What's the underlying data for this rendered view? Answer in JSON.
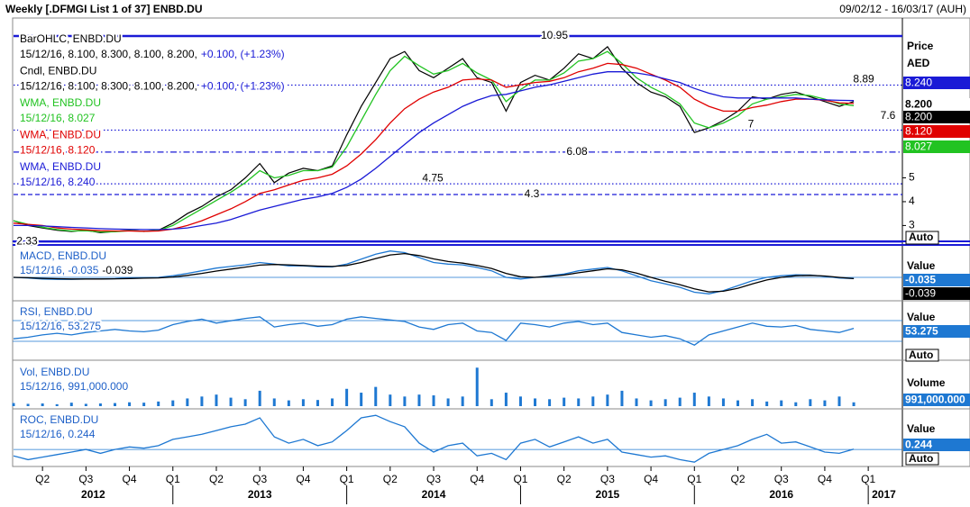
{
  "header": {
    "title": "Weekly [.DFMGI List 1 of 37] ENBD.DU",
    "range": "09/02/12 - 16/03/17 (AUH)"
  },
  "chart_data": [
    {
      "type": "line",
      "axis_title": [
        "Price",
        "AED"
      ],
      "axis_mode": "Auto",
      "ylim": [
        2.26,
        11.1
      ],
      "yticks": [
        3,
        4,
        5
      ],
      "bar_legend": {
        "name": "BarOHLC, ENBD.DU",
        "legend_detail": "15/12/16, 8.100, 8.300, 8.100, 8.200,",
        "legend_change": "+0.100, (+1.23%)",
        "last_label": "8.200"
      },
      "series": [
        {
          "name": "Cndl, ENBD.DU",
          "color": "#000000",
          "legend_detail": "15/12/16, 8.100, 8.300, 8.100, 8.200,",
          "legend_change": "+0.100, (+1.23%)",
          "last_label": "8.200",
          "values": [
            3.2,
            3.0,
            2.9,
            2.8,
            2.75,
            2.8,
            2.7,
            2.75,
            2.8,
            2.75,
            2.8,
            3.1,
            3.5,
            3.8,
            4.2,
            4.5,
            5.0,
            5.6,
            4.8,
            5.2,
            5.4,
            5.3,
            5.5,
            6.8,
            8.0,
            9.0,
            10.0,
            10.3,
            9.5,
            9.2,
            9.6,
            10.0,
            9.2,
            9.0,
            7.8,
            9.0,
            9.3,
            9.1,
            9.6,
            10.2,
            10.0,
            10.5,
            9.6,
            9.0,
            8.6,
            8.4,
            8.0,
            6.9,
            7.1,
            7.4,
            7.8,
            8.4,
            8.3,
            8.5,
            8.6,
            8.4,
            8.2,
            8.0,
            8.2
          ]
        },
        {
          "name": "WMA, ENBD.DU",
          "color": "#22c322",
          "legend_detail": "15/12/16, 8.027",
          "last_label": "8.027",
          "values": [
            3.2,
            3.05,
            2.93,
            2.83,
            2.77,
            2.78,
            2.73,
            2.74,
            2.78,
            2.76,
            2.79,
            3.0,
            3.35,
            3.7,
            4.05,
            4.4,
            4.8,
            5.3,
            5.0,
            5.1,
            5.3,
            5.3,
            5.45,
            6.3,
            7.4,
            8.5,
            9.5,
            10.1,
            9.7,
            9.35,
            9.5,
            9.8,
            9.4,
            9.1,
            8.2,
            8.7,
            9.1,
            9.1,
            9.4,
            9.9,
            10.0,
            10.3,
            9.8,
            9.2,
            8.8,
            8.5,
            8.1,
            7.3,
            7.1,
            7.3,
            7.6,
            8.1,
            8.3,
            8.4,
            8.5,
            8.45,
            8.3,
            8.1,
            8.03
          ]
        },
        {
          "name": "WMA, ENBD.DU",
          "color": "#e00000",
          "legend_detail": "15/12/16, 8.120",
          "last_label": "8.120",
          "values": [
            3.1,
            3.05,
            3.0,
            2.9,
            2.85,
            2.82,
            2.78,
            2.77,
            2.77,
            2.76,
            2.77,
            2.85,
            3.0,
            3.2,
            3.45,
            3.7,
            4.0,
            4.35,
            4.5,
            4.7,
            4.9,
            5.0,
            5.15,
            5.5,
            6.0,
            6.6,
            7.3,
            7.9,
            8.3,
            8.6,
            8.8,
            9.1,
            9.15,
            9.1,
            8.8,
            8.9,
            9.0,
            9.05,
            9.2,
            9.45,
            9.6,
            9.8,
            9.75,
            9.6,
            9.35,
            9.1,
            8.8,
            8.3,
            8.0,
            7.8,
            7.8,
            7.95,
            8.05,
            8.2,
            8.3,
            8.3,
            8.25,
            8.15,
            8.12
          ]
        },
        {
          "name": "WMA, ENBD.DU",
          "color": "#1a1ad6",
          "legend_detail": "15/12/16, 8.240",
          "last_label": "8.240",
          "values": [
            3.0,
            3.0,
            2.98,
            2.95,
            2.92,
            2.9,
            2.87,
            2.85,
            2.84,
            2.83,
            2.83,
            2.85,
            2.9,
            3.0,
            3.1,
            3.25,
            3.45,
            3.65,
            3.8,
            3.95,
            4.1,
            4.2,
            4.35,
            4.6,
            4.95,
            5.4,
            5.9,
            6.4,
            6.9,
            7.3,
            7.65,
            8.0,
            8.25,
            8.45,
            8.5,
            8.65,
            8.8,
            8.9,
            9.05,
            9.2,
            9.35,
            9.45,
            9.45,
            9.4,
            9.3,
            9.15,
            9.0,
            8.75,
            8.55,
            8.4,
            8.35,
            8.35,
            8.35,
            8.35,
            8.35,
            8.3,
            8.27,
            8.25,
            8.24
          ]
        }
      ],
      "hlines": [
        {
          "value": 10.95,
          "style": "solid"
        },
        {
          "value": 8.89,
          "style": "dotted"
        },
        {
          "value": 7.6,
          "style": "none"
        },
        {
          "value": 7,
          "style": "dotted"
        },
        {
          "value": 6.08,
          "style": "dashdot"
        },
        {
          "value": 4.75,
          "style": "dotted"
        },
        {
          "value": 4.3,
          "style": "dashed"
        },
        {
          "value": 2.33,
          "style": "solid"
        }
      ]
    },
    {
      "type": "line",
      "title": "MACD, ENBD.DU",
      "legend_detail": "15/12/16, -0.035",
      "axis_title": "Value",
      "ylim": [
        -0.6,
        0.9
      ],
      "series": [
        {
          "color": "#1e78d2",
          "last_label": "-0.035",
          "values": [
            0.0,
            -0.02,
            -0.05,
            -0.06,
            -0.06,
            -0.05,
            -0.05,
            -0.04,
            -0.02,
            -0.01,
            0.0,
            0.05,
            0.12,
            0.2,
            0.28,
            0.33,
            0.38,
            0.45,
            0.4,
            0.35,
            0.35,
            0.32,
            0.32,
            0.4,
            0.55,
            0.7,
            0.8,
            0.75,
            0.6,
            0.45,
            0.4,
            0.38,
            0.3,
            0.2,
            0.0,
            -0.05,
            0.0,
            0.05,
            0.1,
            0.2,
            0.25,
            0.3,
            0.2,
            0.05,
            -0.1,
            -0.2,
            -0.3,
            -0.45,
            -0.5,
            -0.4,
            -0.25,
            -0.1,
            0.0,
            0.05,
            0.08,
            0.07,
            0.03,
            -0.02,
            -0.035
          ]
        },
        {
          "color": "#000000",
          "last_label": "-0.039",
          "values": [
            0.0,
            -0.01,
            -0.03,
            -0.04,
            -0.05,
            -0.05,
            -0.05,
            -0.045,
            -0.035,
            -0.025,
            -0.015,
            0.01,
            0.06,
            0.12,
            0.19,
            0.25,
            0.31,
            0.37,
            0.39,
            0.38,
            0.36,
            0.34,
            0.33,
            0.36,
            0.45,
            0.57,
            0.68,
            0.72,
            0.66,
            0.56,
            0.48,
            0.43,
            0.36,
            0.27,
            0.12,
            0.02,
            0.0,
            0.03,
            0.07,
            0.14,
            0.2,
            0.26,
            0.23,
            0.13,
            0.0,
            -0.12,
            -0.22,
            -0.35,
            -0.44,
            -0.42,
            -0.33,
            -0.2,
            -0.08,
            0.0,
            0.05,
            0.06,
            0.04,
            0.0,
            -0.039
          ]
        }
      ]
    },
    {
      "type": "line",
      "title": "RSI, ENBD.DU",
      "legend_detail": "15/12/16, 53.275",
      "axis_title": "Value",
      "axis_mode": "Auto",
      "ylim": [
        15,
        85
      ],
      "series": [
        {
          "color": "#1e78d2",
          "last_label": "53.275",
          "values": [
            40,
            42,
            45,
            47,
            45,
            48,
            50,
            52,
            50,
            49,
            51,
            58,
            62,
            65,
            60,
            63,
            66,
            68,
            55,
            58,
            60,
            56,
            58,
            65,
            68,
            66,
            64,
            62,
            55,
            52,
            58,
            60,
            50,
            48,
            38,
            60,
            58,
            55,
            60,
            62,
            58,
            60,
            48,
            45,
            42,
            44,
            40,
            32,
            45,
            50,
            55,
            60,
            56,
            55,
            57,
            52,
            50,
            48,
            53.275
          ]
        }
      ]
    },
    {
      "type": "bar",
      "title": "Vol, ENBD.DU",
      "legend_detail": "15/12/16, 991,000.000",
      "axis_title": "Volume",
      "ylim": [
        0,
        11000000
      ],
      "series": [
        {
          "color": "#1e78d2",
          "last_label": "991,000.000",
          "values": [
            800000,
            600000,
            700000,
            500000,
            900000,
            600000,
            700000,
            800000,
            1000000,
            900000,
            1200000,
            1500000,
            2000000,
            2500000,
            3000000,
            2200000,
            1800000,
            4000000,
            2000000,
            1500000,
            1800000,
            1600000,
            2000000,
            4500000,
            3500000,
            5000000,
            3000000,
            2500000,
            3000000,
            2800000,
            2000000,
            2500000,
            10000000,
            1800000,
            3500000,
            2500000,
            2000000,
            1800000,
            2200000,
            2000000,
            2500000,
            3000000,
            4000000,
            2000000,
            1500000,
            1800000,
            2200000,
            3500000,
            2500000,
            2000000,
            1500000,
            1800000,
            1200000,
            1500000,
            1000000,
            1800000,
            1500000,
            2500000,
            991000
          ]
        }
      ]
    },
    {
      "type": "line",
      "title": "ROC, ENBD.DU",
      "legend_detail": "15/12/16, 0.244",
      "axis_title": "Value",
      "axis_mode": "Auto",
      "ylim": [
        -12,
        30
      ],
      "series": [
        {
          "color": "#1e78d2",
          "last_label": "0.244",
          "values": [
            -5,
            -8,
            -6,
            -4,
            -2,
            0,
            -3,
            0,
            2,
            1,
            3,
            8,
            10,
            12,
            15,
            18,
            20,
            25,
            10,
            5,
            8,
            3,
            6,
            15,
            25,
            27,
            22,
            18,
            5,
            -2,
            3,
            5,
            -5,
            -3,
            -8,
            5,
            8,
            2,
            6,
            10,
            5,
            8,
            -2,
            -4,
            -6,
            -5,
            -8,
            -10,
            -3,
            0,
            3,
            8,
            12,
            5,
            6,
            2,
            -2,
            -3,
            0.244
          ]
        }
      ]
    }
  ],
  "x_axis": {
    "quarters": [
      "Q2",
      "Q3",
      "Q4",
      "Q1",
      "Q2",
      "Q3",
      "Q4",
      "Q1",
      "Q2",
      "Q3",
      "Q4",
      "Q1",
      "Q2",
      "Q3",
      "Q4",
      "Q1",
      "Q2",
      "Q3",
      "Q4",
      "Q1"
    ],
    "years": [
      "2012",
      "2013",
      "2014",
      "2015",
      "2016",
      "2017"
    ]
  }
}
